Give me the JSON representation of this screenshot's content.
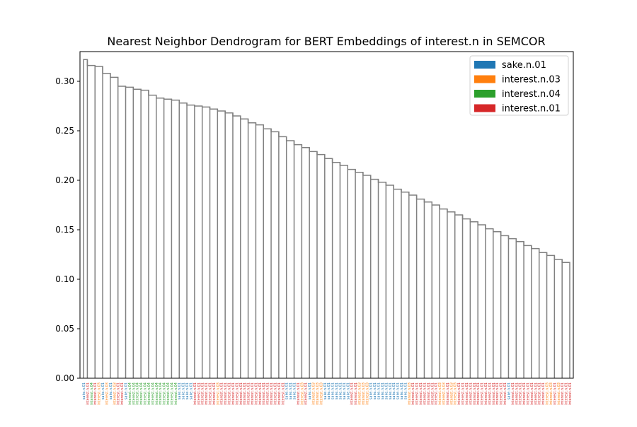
{
  "chart_data": {
    "type": "dendrogram",
    "title": "Nearest Neighbor Dendrogram for BERT Embeddings of interest.n in SEMCOR",
    "xlabel": "",
    "ylabel": "",
    "ylim": [
      0.0,
      0.33
    ],
    "yticks": [
      0.0,
      0.05,
      0.1,
      0.15,
      0.2,
      0.25,
      0.3
    ],
    "ytick_labels": [
      "0.00",
      "0.05",
      "0.10",
      "0.15",
      "0.20",
      "0.25",
      "0.30"
    ],
    "grid": false,
    "legend_position": "top-right",
    "link_color": "#808080",
    "legend": [
      {
        "label": "sake.n.01",
        "color": "#1f77b4"
      },
      {
        "label": "interest.n.03",
        "color": "#ff7f0e"
      },
      {
        "label": "interest.n.04",
        "color": "#2ca02c"
      },
      {
        "label": "interest.n.01",
        "color": "#d62728"
      }
    ],
    "leaves": [
      "sake.n.01",
      "interest.n.01",
      "interest.n.04",
      "interest.n.01",
      "interest.n.03",
      "sake.n.01",
      "interest.n.03",
      "sake.n.01",
      "interest.n.03",
      "interest.n.01",
      "interest.n.01",
      "sake.n.01",
      "interest.n.04",
      "interest.n.04",
      "interest.n.04",
      "interest.n.04",
      "interest.n.04",
      "interest.n.04",
      "interest.n.04",
      "interest.n.04",
      "interest.n.04",
      "interest.n.04",
      "interest.n.04",
      "interest.n.04",
      "interest.n.04",
      "sake.n.01",
      "sake.n.01",
      "sake.n.01",
      "sake.n.01",
      "interest.n.01",
      "interest.n.01",
      "interest.n.01",
      "interest.n.01",
      "interest.n.01",
      "interest.n.01",
      "interest.n.03",
      "interest.n.01",
      "interest.n.01",
      "interest.n.01",
      "interest.n.01",
      "interest.n.01",
      "interest.n.01",
      "interest.n.01",
      "interest.n.01",
      "interest.n.01",
      "interest.n.01",
      "interest.n.01",
      "interest.n.01",
      "interest.n.01",
      "interest.n.01",
      "interest.n.01",
      "interest.n.01",
      "interest.n.01",
      "sake.n.01",
      "sake.n.01",
      "sake.n.01",
      "interest.n.01",
      "interest.n.03",
      "interest.n.01",
      "sake.n.01",
      "interest.n.03",
      "interest.n.03",
      "interest.n.03",
      "sake.n.01",
      "sake.n.01",
      "sake.n.01",
      "sake.n.01",
      "sake.n.01",
      "sake.n.01",
      "sake.n.01",
      "interest.n.01",
      "interest.n.01",
      "interest.n.03",
      "interest.n.03",
      "interest.n.03",
      "sake.n.01",
      "sake.n.01",
      "sake.n.01",
      "sake.n.01",
      "sake.n.01",
      "sake.n.01",
      "sake.n.01",
      "sake.n.01",
      "sake.n.01",
      "sake.n.01",
      "interest.n.03",
      "interest.n.01",
      "interest.n.01",
      "interest.n.01",
      "interest.n.01",
      "interest.n.01",
      "interest.n.01",
      "interest.n.01",
      "interest.n.03",
      "interest.n.03",
      "interest.n.01",
      "interest.n.03",
      "interest.n.03",
      "interest.n.01",
      "interest.n.01",
      "interest.n.01",
      "interest.n.01",
      "interest.n.01",
      "interest.n.01",
      "interest.n.01",
      "interest.n.01",
      "interest.n.01",
      "interest.n.01",
      "interest.n.01",
      "interest.n.01",
      "interest.n.01",
      "sake.n.01",
      "interest.n.01",
      "interest.n.01",
      "interest.n.01",
      "interest.n.01",
      "interest.n.01",
      "interest.n.01",
      "interest.n.01",
      "interest.n.01",
      "interest.n.01",
      "interest.n.03",
      "interest.n.03",
      "interest.n.01",
      "interest.n.03",
      "interest.n.01",
      "interest.n.01",
      "interest.n.01"
    ],
    "merges": [
      {
        "x": [
          0,
          1
        ],
        "h": 0.322
      },
      {
        "x": [
          1,
          3
        ],
        "h": 0.316
      },
      {
        "x": [
          3,
          5
        ],
        "h": 0.315
      },
      {
        "x": [
          5,
          7
        ],
        "h": 0.308
      },
      {
        "x": [
          7,
          9
        ],
        "h": 0.304
      },
      {
        "x": [
          9,
          11
        ],
        "h": 0.295
      },
      {
        "x": [
          11,
          13
        ],
        "h": 0.294
      },
      {
        "x": [
          13,
          15
        ],
        "h": 0.292
      },
      {
        "x": [
          15,
          17
        ],
        "h": 0.291
      },
      {
        "x": [
          17,
          19
        ],
        "h": 0.286
      },
      {
        "x": [
          19,
          21
        ],
        "h": 0.283
      },
      {
        "x": [
          21,
          23
        ],
        "h": 0.282
      },
      {
        "x": [
          23,
          25
        ],
        "h": 0.281
      },
      {
        "x": [
          25,
          27
        ],
        "h": 0.278
      },
      {
        "x": [
          27,
          29
        ],
        "h": 0.276
      },
      {
        "x": [
          29,
          31
        ],
        "h": 0.275
      },
      {
        "x": [
          31,
          33
        ],
        "h": 0.274
      },
      {
        "x": [
          33,
          35
        ],
        "h": 0.272
      },
      {
        "x": [
          35,
          37
        ],
        "h": 0.27
      },
      {
        "x": [
          37,
          39
        ],
        "h": 0.268
      },
      {
        "x": [
          39,
          41
        ],
        "h": 0.265
      },
      {
        "x": [
          41,
          43
        ],
        "h": 0.262
      },
      {
        "x": [
          43,
          45
        ],
        "h": 0.258
      },
      {
        "x": [
          45,
          47
        ],
        "h": 0.256
      },
      {
        "x": [
          47,
          49
        ],
        "h": 0.252
      },
      {
        "x": [
          49,
          51
        ],
        "h": 0.249
      },
      {
        "x": [
          51,
          53
        ],
        "h": 0.244
      },
      {
        "x": [
          53,
          55
        ],
        "h": 0.24
      },
      {
        "x": [
          55,
          57
        ],
        "h": 0.236
      },
      {
        "x": [
          57,
          59
        ],
        "h": 0.233
      },
      {
        "x": [
          59,
          61
        ],
        "h": 0.229
      },
      {
        "x": [
          61,
          63
        ],
        "h": 0.226
      },
      {
        "x": [
          63,
          65
        ],
        "h": 0.222
      },
      {
        "x": [
          65,
          67
        ],
        "h": 0.218
      },
      {
        "x": [
          67,
          69
        ],
        "h": 0.215
      },
      {
        "x": [
          69,
          71
        ],
        "h": 0.211
      },
      {
        "x": [
          71,
          73
        ],
        "h": 0.208
      },
      {
        "x": [
          73,
          75
        ],
        "h": 0.205
      },
      {
        "x": [
          75,
          77
        ],
        "h": 0.201
      },
      {
        "x": [
          77,
          79
        ],
        "h": 0.198
      },
      {
        "x": [
          79,
          81
        ],
        "h": 0.195
      },
      {
        "x": [
          81,
          83
        ],
        "h": 0.191
      },
      {
        "x": [
          83,
          85
        ],
        "h": 0.188
      },
      {
        "x": [
          85,
          87
        ],
        "h": 0.185
      },
      {
        "x": [
          87,
          89
        ],
        "h": 0.181
      },
      {
        "x": [
          89,
          91
        ],
        "h": 0.178
      },
      {
        "x": [
          91,
          93
        ],
        "h": 0.175
      },
      {
        "x": [
          93,
          95
        ],
        "h": 0.171
      },
      {
        "x": [
          95,
          97
        ],
        "h": 0.168
      },
      {
        "x": [
          97,
          99
        ],
        "h": 0.165
      },
      {
        "x": [
          99,
          101
        ],
        "h": 0.161
      },
      {
        "x": [
          101,
          103
        ],
        "h": 0.158
      },
      {
        "x": [
          103,
          105
        ],
        "h": 0.155
      },
      {
        "x": [
          105,
          107
        ],
        "h": 0.151
      },
      {
        "x": [
          107,
          109
        ],
        "h": 0.148
      },
      {
        "x": [
          109,
          111
        ],
        "h": 0.144
      },
      {
        "x": [
          111,
          113
        ],
        "h": 0.141
      },
      {
        "x": [
          113,
          115
        ],
        "h": 0.138
      },
      {
        "x": [
          115,
          117
        ],
        "h": 0.134
      },
      {
        "x": [
          117,
          119
        ],
        "h": 0.131
      },
      {
        "x": [
          119,
          121
        ],
        "h": 0.127
      },
      {
        "x": [
          121,
          123
        ],
        "h": 0.124
      },
      {
        "x": [
          123,
          125
        ],
        "h": 0.12
      },
      {
        "x": [
          125,
          127
        ],
        "h": 0.117
      }
    ]
  }
}
